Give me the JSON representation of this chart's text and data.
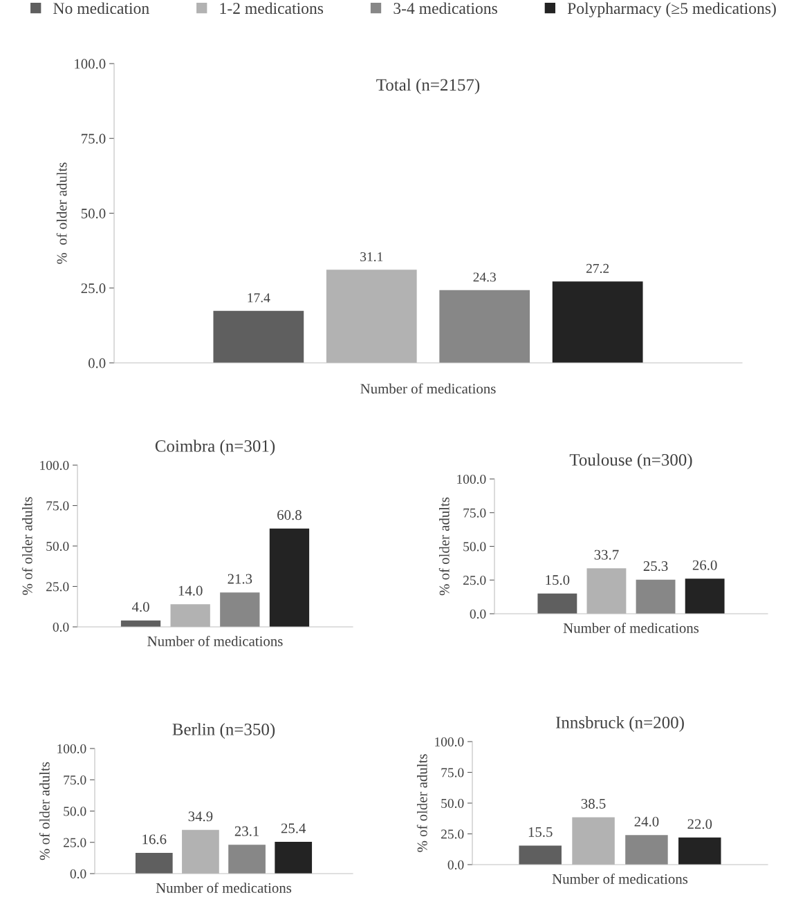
{
  "chart_data": [
    {
      "type": "bar",
      "title": "Total (n=2157)",
      "xlabel": "Number of medications",
      "ylabel": "%  of older adults",
      "categories": [
        null
      ],
      "series": [
        {
          "name": "No medication",
          "color": "#5f5f5f",
          "values": [
            17.4
          ],
          "value_labels": [
            "17.4"
          ]
        },
        {
          "name": "1-2 medications",
          "color": "#b2b2b2",
          "values": [
            31.1
          ],
          "value_labels": [
            "31.1"
          ]
        },
        {
          "name": "3-4 medications",
          "color": "#878787",
          "values": [
            24.3
          ],
          "value_labels": [
            "24.3"
          ]
        },
        {
          "name": "Polypharmacy (≥5 medications)",
          "color": "#232323",
          "values": [
            27.2
          ],
          "value_labels": [
            "27.2"
          ]
        }
      ],
      "ylim": [
        0,
        100
      ],
      "yticks": [
        {
          "value": 0,
          "label": "0.0"
        },
        {
          "value": 25,
          "label": "25.0"
        },
        {
          "value": 50,
          "label": "50.0"
        },
        {
          "value": 75,
          "label": "75.0"
        },
        {
          "value": 100,
          "label": "100.0"
        }
      ],
      "legend": "top",
      "grid": false
    },
    {
      "type": "bar",
      "title": "Coimbra (n=301)",
      "xlabel": "Number of medications",
      "ylabel": "% of older adults",
      "categories": [
        null
      ],
      "series": [
        {
          "color": "#5f5f5f",
          "values": [
            4.0
          ],
          "value_labels": [
            "4.0"
          ]
        },
        {
          "color": "#b2b2b2",
          "values": [
            14.0
          ],
          "value_labels": [
            "14.0"
          ]
        },
        {
          "color": "#878787",
          "values": [
            21.3
          ],
          "value_labels": [
            "21.3"
          ]
        },
        {
          "color": "#232323",
          "values": [
            60.8
          ],
          "value_labels": [
            "60.8"
          ]
        }
      ],
      "ylim": [
        0,
        100
      ],
      "yticks": [
        {
          "value": 0,
          "label": "0.0"
        },
        {
          "value": 25,
          "label": "25.0"
        },
        {
          "value": 50,
          "label": "50.0"
        },
        {
          "value": 75,
          "label": "75.0"
        },
        {
          "value": 100,
          "label": "100.0"
        }
      ],
      "grid": false
    },
    {
      "type": "bar",
      "title": "Toulouse (n=300)",
      "xlabel": "Number of medications",
      "ylabel": "% of older adults",
      "categories": [
        null
      ],
      "series": [
        {
          "color": "#5f5f5f",
          "values": [
            15.0
          ],
          "value_labels": [
            "15.0"
          ]
        },
        {
          "color": "#b2b2b2",
          "values": [
            33.7
          ],
          "value_labels": [
            "33.7"
          ]
        },
        {
          "color": "#878787",
          "values": [
            25.3
          ],
          "value_labels": [
            "25.3"
          ]
        },
        {
          "color": "#232323",
          "values": [
            26.0
          ],
          "value_labels": [
            "26.0"
          ]
        }
      ],
      "ylim": [
        0,
        100
      ],
      "yticks": [
        {
          "value": 0,
          "label": "0.0"
        },
        {
          "value": 25,
          "label": "25.0"
        },
        {
          "value": 50,
          "label": "50.0"
        },
        {
          "value": 75,
          "label": "75.0"
        },
        {
          "value": 100,
          "label": "100.0"
        }
      ],
      "grid": false
    },
    {
      "type": "bar",
      "title": "Berlin (n=350)",
      "xlabel": "Number of medications",
      "ylabel": "% of older adults",
      "categories": [
        null
      ],
      "series": [
        {
          "color": "#5f5f5f",
          "values": [
            16.6
          ],
          "value_labels": [
            "16.6"
          ]
        },
        {
          "color": "#b2b2b2",
          "values": [
            34.9
          ],
          "value_labels": [
            "34.9"
          ]
        },
        {
          "color": "#878787",
          "values": [
            23.1
          ],
          "value_labels": [
            "23.1"
          ]
        },
        {
          "color": "#232323",
          "values": [
            25.4
          ],
          "value_labels": [
            "25.4"
          ]
        }
      ],
      "ylim": [
        0,
        100
      ],
      "yticks": [
        {
          "value": 0,
          "label": "0.0"
        },
        {
          "value": 25,
          "label": "25.0"
        },
        {
          "value": 50,
          "label": "50.0"
        },
        {
          "value": 75,
          "label": "75.0"
        },
        {
          "value": 100,
          "label": "100.0"
        }
      ],
      "grid": false
    },
    {
      "type": "bar",
      "title": "Innsbruck (n=200)",
      "xlabel": "Number of medications",
      "ylabel": "% of older adults",
      "categories": [
        null
      ],
      "series": [
        {
          "color": "#5f5f5f",
          "values": [
            15.5
          ],
          "value_labels": [
            "15.5"
          ]
        },
        {
          "color": "#b2b2b2",
          "values": [
            38.5
          ],
          "value_labels": [
            "38.5"
          ]
        },
        {
          "color": "#878787",
          "values": [
            24.0
          ],
          "value_labels": [
            "24.0"
          ]
        },
        {
          "color": "#232323",
          "values": [
            22.0
          ],
          "value_labels": [
            "22.0"
          ]
        }
      ],
      "ylim": [
        0,
        100
      ],
      "yticks": [
        {
          "value": 0,
          "label": "0.0"
        },
        {
          "value": 25,
          "label": "25.0"
        },
        {
          "value": 50,
          "label": "50.0"
        },
        {
          "value": 75,
          "label": "75.0"
        },
        {
          "value": 100,
          "label": "100.0"
        }
      ],
      "grid": false
    }
  ]
}
